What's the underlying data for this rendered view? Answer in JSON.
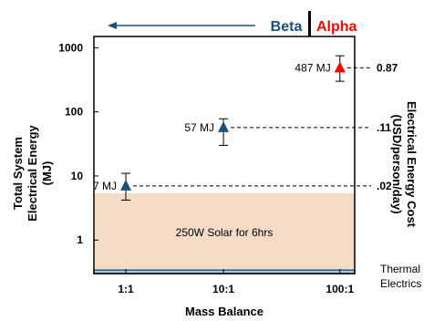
{
  "chart_data": {
    "type": "scatter",
    "xlabel": "Mass Balance",
    "ylabel": [
      "Total System",
      "Electrical Energy",
      "(MJ)"
    ],
    "y2label": [
      "Electrical Energy Cost",
      "(USD/person/day)"
    ],
    "y_scale": "log",
    "ylim": [
      0.3,
      1500
    ],
    "x_ticks": [
      "1:1",
      "10:1",
      "100:1"
    ],
    "y_ticks": [
      {
        "value": 1,
        "label": "1"
      },
      {
        "value": 10,
        "label": "10"
      },
      {
        "value": 100,
        "label": "100"
      },
      {
        "value": 1000,
        "label": "1000"
      }
    ],
    "header": {
      "beta": "Beta",
      "alpha": "Alpha"
    },
    "colors": {
      "beta": "#1f4e79",
      "alpha": "#ff0000",
      "solar_fill": "#f4dcc6",
      "thermal_fill": "#b4c6d6"
    },
    "points": [
      {
        "name": "Beta",
        "x": "1:1",
        "x_pos": 0.0,
        "y": 7,
        "y_low": 4.2,
        "y_high": 11,
        "label": "7 MJ",
        "cost": ".02",
        "color": "#1f4e79"
      },
      {
        "name": "Beta",
        "x": "10:1",
        "x_pos": 0.83,
        "y": 57,
        "y_low": 30,
        "y_high": 78,
        "label": "57 MJ",
        "cost": ".11",
        "color": "#1f4e79"
      },
      {
        "name": "Alpha",
        "x": "100:1",
        "x_pos": 1.82,
        "y": 487,
        "y_low": 300,
        "y_high": 750,
        "label": "487 MJ",
        "cost": "0.87",
        "color": "#ff0000"
      }
    ],
    "bands": [
      {
        "label": "250W Solar for 6hrs",
        "y_from": 0.34,
        "y_to": 5.4
      },
      {
        "label": "Thermal Electrics",
        "y_from": 0.3,
        "y_to": 0.34
      }
    ]
  }
}
